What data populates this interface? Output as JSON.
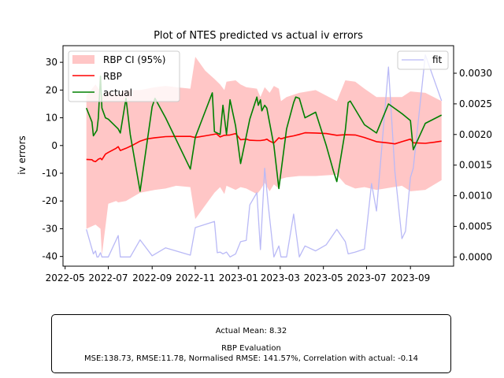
{
  "chart_data": {
    "type": "line",
    "title": "Plot of NTES predicted vs actual iv errors",
    "ylabel": "iv errors",
    "ylim": [
      -43.5,
      36
    ],
    "yticks": [
      -40,
      -30,
      -20,
      -10,
      0,
      10,
      20,
      30
    ],
    "y2lim": [
      -0.00015,
      0.00345
    ],
    "y2ticks": [
      "0.0000",
      "0.0005",
      "0.0010",
      "0.0015",
      "0.0020",
      "0.0025",
      "0.0030"
    ],
    "xlim": [
      "2022-04-28",
      "2023-11-01"
    ],
    "xticks": [
      "2022-05",
      "2022-07",
      "2022-09",
      "2022-11",
      "2023-01",
      "2023-03",
      "2023-05",
      "2023-07",
      "2023-09"
    ],
    "legend_left": {
      "placement": "top-left",
      "entries": [
        "RBP CI (95%)",
        "RBP",
        "actual"
      ]
    },
    "legend_right": {
      "placement": "top-right",
      "entries": [
        "fit"
      ]
    },
    "series": [
      {
        "name": "RBP",
        "color": "#ff0000",
        "points": [
          [
            "2022-05-31",
            -5.0
          ],
          [
            "2022-06-08",
            -5.1
          ],
          [
            "2022-06-10",
            -5.6
          ],
          [
            "2022-06-13",
            -5.8
          ],
          [
            "2022-06-15",
            -5.4
          ],
          [
            "2022-06-17",
            -4.9
          ],
          [
            "2022-06-20",
            -4.6
          ],
          [
            "2022-06-22",
            -5.1
          ],
          [
            "2022-06-27",
            -3.1
          ],
          [
            "2022-07-01",
            -2.5
          ],
          [
            "2022-07-12",
            -1.0
          ],
          [
            "2022-07-15",
            -0.4
          ],
          [
            "2022-07-18",
            -1.8
          ],
          [
            "2022-07-26",
            -1.0
          ],
          [
            "2022-08-05",
            0.2
          ],
          [
            "2022-08-15",
            1.6
          ],
          [
            "2022-08-25",
            2.4
          ],
          [
            "2022-09-05",
            2.8
          ],
          [
            "2022-09-20",
            3.2
          ],
          [
            "2022-10-05",
            3.3
          ],
          [
            "2022-10-25",
            3.3
          ],
          [
            "2022-11-01",
            2.9
          ],
          [
            "2022-11-15",
            3.5
          ],
          [
            "2022-12-01",
            4.2
          ],
          [
            "2022-12-06",
            3.1
          ],
          [
            "2022-12-12",
            3.7
          ],
          [
            "2022-12-20",
            3.8
          ],
          [
            "2022-12-28",
            4.3
          ],
          [
            "2023-01-04",
            2.1
          ],
          [
            "2023-01-12",
            2.3
          ],
          [
            "2023-01-17",
            1.9
          ],
          [
            "2023-01-27",
            1.8
          ],
          [
            "2023-02-01",
            1.8
          ],
          [
            "2023-02-07",
            2.0
          ],
          [
            "2023-02-10",
            2.3
          ],
          [
            "2023-02-14",
            1.6
          ],
          [
            "2023-02-20",
            0.9
          ],
          [
            "2023-02-27",
            2.8
          ],
          [
            "2023-03-02",
            2.4
          ],
          [
            "2023-03-10",
            3.0
          ],
          [
            "2023-03-20",
            3.5
          ],
          [
            "2023-03-28",
            4.0
          ],
          [
            "2023-04-05",
            4.6
          ],
          [
            "2023-04-20",
            4.5
          ],
          [
            "2023-05-05",
            4.3
          ],
          [
            "2023-05-20",
            3.7
          ],
          [
            "2023-06-01",
            3.9
          ],
          [
            "2023-06-15",
            3.8
          ],
          [
            "2023-06-28",
            2.9
          ],
          [
            "2023-07-15",
            1.4
          ],
          [
            "2023-08-01",
            0.9
          ],
          [
            "2023-08-10",
            0.6
          ],
          [
            "2023-08-20",
            1.4
          ],
          [
            "2023-09-01",
            2.3
          ],
          [
            "2023-09-05",
            1.0
          ],
          [
            "2023-09-22",
            0.8
          ],
          [
            "2023-10-05",
            1.2
          ],
          [
            "2023-10-15",
            1.6
          ]
        ]
      },
      {
        "name": "actual",
        "color": "#008000",
        "points": [
          [
            "2022-05-31",
            13.5
          ],
          [
            "2022-06-08",
            8.5
          ],
          [
            "2022-06-10",
            3.5
          ],
          [
            "2022-06-15",
            5.5
          ],
          [
            "2022-06-17",
            10.0
          ],
          [
            "2022-06-20",
            25.0
          ],
          [
            "2022-06-22",
            13.5
          ],
          [
            "2022-06-27",
            10.0
          ],
          [
            "2022-07-01",
            9.5
          ],
          [
            "2022-07-15",
            6.0
          ],
          [
            "2022-07-18",
            4.5
          ],
          [
            "2022-07-26",
            17.0
          ],
          [
            "2022-08-01",
            4.0
          ],
          [
            "2022-08-15",
            -16.5
          ],
          [
            "2022-09-01",
            14.0
          ],
          [
            "2022-09-05",
            17.0
          ],
          [
            "2022-09-20",
            10.0
          ],
          [
            "2022-10-25",
            -8.5
          ],
          [
            "2022-11-01",
            3.0
          ],
          [
            "2022-11-25",
            19.0
          ],
          [
            "2022-11-28",
            5.0
          ],
          [
            "2022-12-06",
            4.0
          ],
          [
            "2022-12-10",
            14.5
          ],
          [
            "2022-12-15",
            4.0
          ],
          [
            "2022-12-20",
            16.5
          ],
          [
            "2022-12-28",
            7.0
          ],
          [
            "2023-01-04",
            -6.5
          ],
          [
            "2023-01-17",
            9.5
          ],
          [
            "2023-01-27",
            17.5
          ],
          [
            "2023-01-29",
            14.5
          ],
          [
            "2023-02-01",
            16.5
          ],
          [
            "2023-02-03",
            12.5
          ],
          [
            "2023-02-07",
            14.5
          ],
          [
            "2023-02-10",
            13.5
          ],
          [
            "2023-02-20",
            0.0
          ],
          [
            "2023-02-27",
            -15.5
          ],
          [
            "2023-03-10",
            6.0
          ],
          [
            "2023-03-20",
            15.5
          ],
          [
            "2023-03-23",
            17.5
          ],
          [
            "2023-03-28",
            17.0
          ],
          [
            "2023-04-05",
            10.0
          ],
          [
            "2023-04-20",
            12.0
          ],
          [
            "2023-05-05",
            0.0
          ],
          [
            "2023-05-15",
            -9.0
          ],
          [
            "2023-05-20",
            -13.0
          ],
          [
            "2023-06-01",
            5.5
          ],
          [
            "2023-06-05",
            15.5
          ],
          [
            "2023-06-08",
            16.0
          ],
          [
            "2023-06-28",
            7.5
          ],
          [
            "2023-07-15",
            4.5
          ],
          [
            "2023-08-01",
            15.0
          ],
          [
            "2023-08-20",
            11.5
          ],
          [
            "2023-09-01",
            9.0
          ],
          [
            "2023-09-05",
            -1.5
          ],
          [
            "2023-09-22",
            8.0
          ],
          [
            "2023-10-15",
            11.0
          ]
        ]
      },
      {
        "name": "fit",
        "color": "#b9b9f6",
        "axis": "right",
        "points": [
          [
            "2022-05-31",
            0.00045
          ],
          [
            "2022-06-10",
            5e-05
          ],
          [
            "2022-06-13",
            0.0001
          ],
          [
            "2022-06-15",
            0.0
          ],
          [
            "2022-06-17",
            0.0
          ],
          [
            "2022-06-20",
            7e-05
          ],
          [
            "2022-06-22",
            0.0
          ],
          [
            "2022-06-27",
            0.0
          ],
          [
            "2022-07-01",
            0.0
          ],
          [
            "2022-07-15",
            0.00035
          ],
          [
            "2022-07-18",
            0.0
          ],
          [
            "2022-07-26",
            0.0
          ],
          [
            "2022-08-01",
            0.0
          ],
          [
            "2022-08-15",
            0.00028
          ],
          [
            "2022-09-01",
            2e-05
          ],
          [
            "2022-09-20",
            0.00015
          ],
          [
            "2022-10-25",
            3e-05
          ],
          [
            "2022-11-01",
            0.00048
          ],
          [
            "2022-11-28",
            0.00058
          ],
          [
            "2022-12-02",
            7e-05
          ],
          [
            "2022-12-06",
            8e-05
          ],
          [
            "2022-12-10",
            5e-05
          ],
          [
            "2022-12-15",
            8e-05
          ],
          [
            "2022-12-20",
            0.0
          ],
          [
            "2022-12-28",
            5e-05
          ],
          [
            "2023-01-04",
            0.00025
          ],
          [
            "2023-01-12",
            0.00027
          ],
          [
            "2023-01-17",
            0.00085
          ],
          [
            "2023-01-27",
            0.00105
          ],
          [
            "2023-02-01",
            0.00012
          ],
          [
            "2023-02-07",
            0.00145
          ],
          [
            "2023-02-12",
            0.00085
          ],
          [
            "2023-02-20",
            0.0
          ],
          [
            "2023-02-27",
            0.00018
          ],
          [
            "2023-03-02",
            0.0
          ],
          [
            "2023-03-10",
            0.0
          ],
          [
            "2023-03-20",
            0.0007
          ],
          [
            "2023-03-28",
            0.0
          ],
          [
            "2023-04-05",
            0.00018
          ],
          [
            "2023-04-20",
            0.0001
          ],
          [
            "2023-05-05",
            0.0002
          ],
          [
            "2023-05-20",
            0.00045
          ],
          [
            "2023-06-01",
            0.00025
          ],
          [
            "2023-06-05",
            5e-05
          ],
          [
            "2023-06-15",
            8e-05
          ],
          [
            "2023-06-28",
            0.00013
          ],
          [
            "2023-07-08",
            0.0012
          ],
          [
            "2023-07-15",
            0.00075
          ],
          [
            "2023-08-01",
            0.0031
          ],
          [
            "2023-08-10",
            0.0014
          ],
          [
            "2023-08-20",
            0.0003
          ],
          [
            "2023-08-25",
            0.00042
          ],
          [
            "2023-09-01",
            0.0013
          ],
          [
            "2023-09-05",
            0.00145
          ],
          [
            "2023-09-22",
            0.0033
          ],
          [
            "2023-10-15",
            0.00255
          ]
        ]
      }
    ],
    "ci": {
      "name": "RBP CI (95%)",
      "color": "#ffb3b3",
      "upper": [
        [
          "2022-05-31",
          18.0
        ],
        [
          "2022-06-13",
          22.0
        ],
        [
          "2022-06-20",
          19.5
        ],
        [
          "2022-06-22",
          18.0
        ],
        [
          "2022-07-01",
          19.5
        ],
        [
          "2022-07-12",
          18.5
        ],
        [
          "2022-07-15",
          18.5
        ],
        [
          "2022-07-26",
          20.0
        ],
        [
          "2022-08-15",
          20.0
        ],
        [
          "2022-09-05",
          21.0
        ],
        [
          "2022-09-20",
          21.5
        ],
        [
          "2022-10-05",
          21.0
        ],
        [
          "2022-10-25",
          20.5
        ],
        [
          "2022-11-01",
          32.0
        ],
        [
          "2022-11-15",
          27.0
        ],
        [
          "2022-11-28",
          24.0
        ],
        [
          "2022-12-06",
          22.0
        ],
        [
          "2022-12-12",
          20.0
        ],
        [
          "2022-12-15",
          23.0
        ],
        [
          "2022-12-28",
          23.5
        ],
        [
          "2023-01-04",
          22.0
        ],
        [
          "2023-01-12",
          21.0
        ],
        [
          "2023-01-27",
          20.5
        ],
        [
          "2023-02-01",
          17.5
        ],
        [
          "2023-02-07",
          21.0
        ],
        [
          "2023-02-14",
          19.0
        ],
        [
          "2023-02-20",
          21.5
        ],
        [
          "2023-02-27",
          20.5
        ],
        [
          "2023-03-02",
          16.0
        ],
        [
          "2023-03-10",
          17.5
        ],
        [
          "2023-03-28",
          19.0
        ],
        [
          "2023-04-20",
          20.0
        ],
        [
          "2023-05-20",
          16.0
        ],
        [
          "2023-06-01",
          23.5
        ],
        [
          "2023-06-15",
          23.0
        ],
        [
          "2023-06-28",
          20.5
        ],
        [
          "2023-07-15",
          17.5
        ],
        [
          "2023-08-20",
          17.5
        ],
        [
          "2023-09-01",
          19.5
        ],
        [
          "2023-09-22",
          19.0
        ],
        [
          "2023-10-15",
          16.0
        ]
      ],
      "lower": [
        [
          "2022-05-31",
          -30.0
        ],
        [
          "2022-06-13",
          -28.5
        ],
        [
          "2022-06-20",
          -30.0
        ],
        [
          "2022-06-22",
          -39.5
        ],
        [
          "2022-07-01",
          -21.0
        ],
        [
          "2022-07-12",
          -20.0
        ],
        [
          "2022-07-15",
          -20.5
        ],
        [
          "2022-07-26",
          -20.0
        ],
        [
          "2022-08-15",
          -17.0
        ],
        [
          "2022-09-05",
          -16.0
        ],
        [
          "2022-09-20",
          -15.5
        ],
        [
          "2022-10-05",
          -14.5
        ],
        [
          "2022-10-25",
          -15.0
        ],
        [
          "2022-11-01",
          -26.5
        ],
        [
          "2022-11-28",
          -17.0
        ],
        [
          "2022-12-06",
          -15.0
        ],
        [
          "2022-12-12",
          -17.5
        ],
        [
          "2022-12-15",
          -14.5
        ],
        [
          "2022-12-28",
          -16.0
        ],
        [
          "2023-01-04",
          -15.0
        ],
        [
          "2023-01-12",
          -15.5
        ],
        [
          "2023-01-27",
          -17.5
        ],
        [
          "2023-02-01",
          -16.0
        ],
        [
          "2023-02-07",
          -13.5
        ],
        [
          "2023-02-14",
          -16.5
        ],
        [
          "2023-02-20",
          -14.0
        ],
        [
          "2023-02-27",
          -15.5
        ],
        [
          "2023-03-02",
          -12.0
        ],
        [
          "2023-03-10",
          -11.5
        ],
        [
          "2023-03-28",
          -11.0
        ],
        [
          "2023-04-20",
          -11.0
        ],
        [
          "2023-05-20",
          -10.5
        ],
        [
          "2023-06-01",
          -14.0
        ],
        [
          "2023-06-15",
          -15.5
        ],
        [
          "2023-06-28",
          -15.0
        ],
        [
          "2023-07-15",
          -16.0
        ],
        [
          "2023-08-20",
          -14.5
        ],
        [
          "2023-09-01",
          -16.5
        ],
        [
          "2023-09-22",
          -16.0
        ],
        [
          "2023-10-15",
          -12.5
        ]
      ]
    }
  },
  "stats": {
    "actual_mean": "Actual Mean: 8.32",
    "heading": "RBP Evaluation",
    "metrics": "MSE:138.73, RMSE:11.78, Normalised RMSE: 141.57%, Correlation with actual: -0.14"
  }
}
